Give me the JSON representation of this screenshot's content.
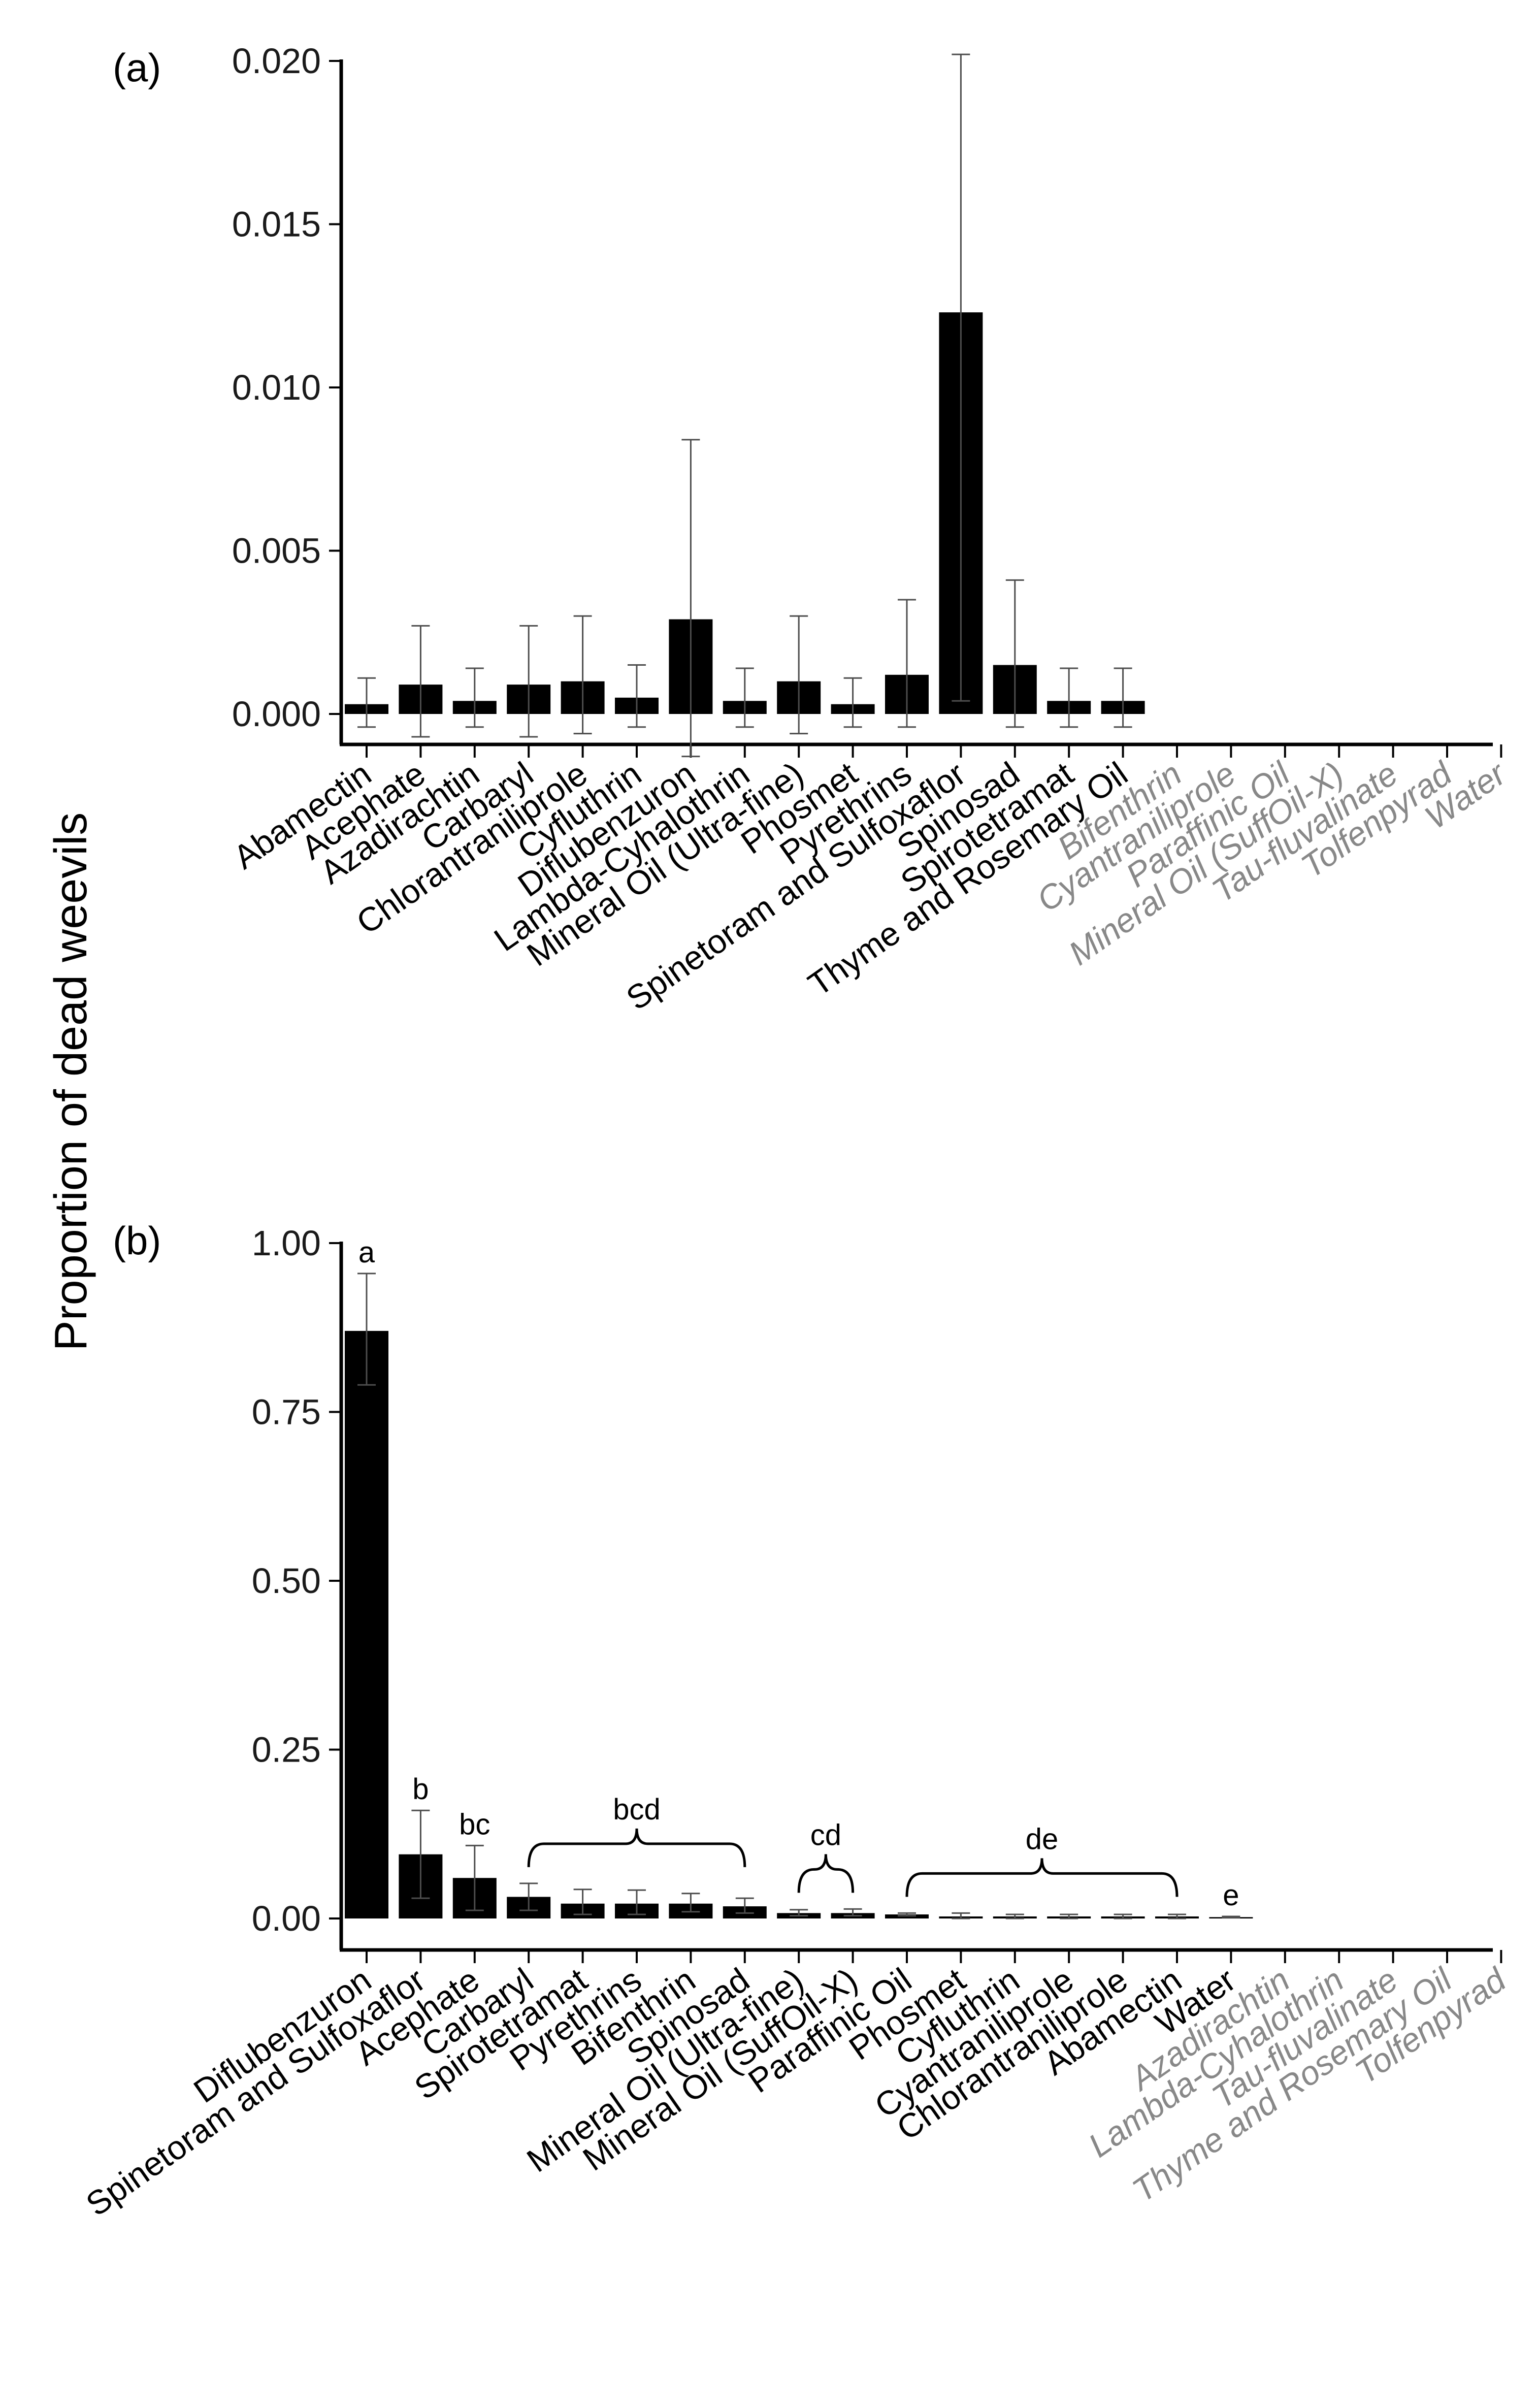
{
  "y_axis_label": "Proportion of dead weevils",
  "chart_data": [
    {
      "panel": "(a)",
      "type": "bar",
      "ylim": [
        0,
        0.02
      ],
      "yticks": [
        "0.000",
        "0.005",
        "0.010",
        "0.015",
        "0.020"
      ],
      "ytick_values": [
        0,
        0.005,
        0.01,
        0.015,
        0.02
      ],
      "categories": [
        "Abamectin",
        "Acephate",
        "Azadirachtin",
        "Carbaryl",
        "Chlorantraniliprole",
        "Cyfluthrin",
        "Diflubenzuron",
        "Lambda-Cyhalothrin",
        "Mineral Oil (Ultra-fine)",
        "Phosmet",
        "Pyrethrins",
        "Spinetoram and Sulfoxaflor",
        "Spinosad",
        "Spirotetramat",
        "Thyme and Rosemary Oil",
        "Bifenthrin",
        "Cyantraniliprole",
        "Paraffinic Oil",
        "Mineral Oil (SuffOil-X)",
        "Tau-fluvalinate",
        "Tolfenpyrad",
        "Water"
      ],
      "values": [
        0.0003,
        0.0009,
        0.0004,
        0.0009,
        0.001,
        0.0005,
        0.0029,
        0.0004,
        0.001,
        0.0003,
        0.0012,
        0.0123,
        0.0015,
        0.0004,
        0.0004,
        null,
        null,
        null,
        null,
        null,
        null,
        null
      ],
      "err_upper": [
        0.0011,
        0.0027,
        0.0014,
        0.0027,
        0.003,
        0.0015,
        0.0084,
        0.0014,
        0.003,
        0.0011,
        0.0035,
        0.0202,
        0.0041,
        0.0014,
        0.0014,
        null,
        null,
        null,
        null,
        null,
        null,
        null
      ],
      "err_lower": [
        -0.0004,
        -0.0007,
        -0.0004,
        -0.0007,
        -0.0006,
        -0.0004,
        -0.0013,
        -0.0004,
        -0.0006,
        -0.0004,
        -0.0004,
        0.0004,
        -0.0004,
        -0.0004,
        -0.0004,
        null,
        null,
        null,
        null,
        null,
        null,
        null
      ],
      "no_data_categories": [
        "Bifenthrin",
        "Cyantraniliprole",
        "Paraffinic Oil",
        "Mineral Oil (SuffOil-X)",
        "Tau-fluvalinate",
        "Tolfenpyrad",
        "Water"
      ]
    },
    {
      "panel": "(b)",
      "type": "bar",
      "ylim": [
        0,
        1.0
      ],
      "yticks": [
        "0.00",
        "0.25",
        "0.50",
        "0.75",
        "1.00"
      ],
      "ytick_values": [
        0,
        0.25,
        0.5,
        0.75,
        1.0
      ],
      "categories": [
        "Diflubenzuron",
        "Spinetoram and Sulfoxaflor",
        "Acephate",
        "Carbaryl",
        "Spirotetramat",
        "Pyrethrins",
        "Bifenthrin",
        "Spinosad",
        "Mineral Oil (Ultra-fine)",
        "Mineral Oil (SuffOil-X)",
        "Paraffinic Oil",
        "Phosmet",
        "Cyfluthrin",
        "Cyantraniliprole",
        "Chlorantraniliprole",
        "Abamectin",
        "Water",
        "Azadirachtin",
        "Lambda-Cyhalothrin",
        "Tau-fluvalinate",
        "Thyme and Rosemary Oil",
        "Tolfenpyrad"
      ],
      "values": [
        0.87,
        0.095,
        0.06,
        0.032,
        0.022,
        0.022,
        0.022,
        0.018,
        0.008,
        0.008,
        0.006,
        0.003,
        0.003,
        0.003,
        0.003,
        0.003,
        0.002,
        null,
        null,
        null,
        null,
        null
      ],
      "err_upper": [
        0.955,
        0.16,
        0.108,
        0.052,
        0.043,
        0.042,
        0.037,
        0.03,
        0.013,
        0.014,
        0.008,
        0.008,
        0.006,
        0.006,
        0.006,
        0.006,
        0.003,
        null,
        null,
        null,
        null,
        null
      ],
      "err_lower": [
        0.79,
        0.03,
        0.012,
        0.012,
        0.006,
        0.006,
        0.01,
        0.008,
        0.004,
        0.004,
        0.004,
        0.0,
        0.0,
        0.0,
        0.0,
        0.0,
        0.001,
        null,
        null,
        null,
        null,
        null
      ],
      "no_data_categories": [
        "Azadirachtin",
        "Lambda-Cyhalothrin",
        "Tau-fluvalinate",
        "Thyme and Rosemary Oil",
        "Tolfenpyrad"
      ],
      "significance_letters": [
        {
          "text": "a",
          "from": 0,
          "to": 0,
          "brace": false
        },
        {
          "text": "b",
          "from": 1,
          "to": 1,
          "brace": false
        },
        {
          "text": "bc",
          "from": 2,
          "to": 2,
          "brace": false
        },
        {
          "text": "bcd",
          "from": 3,
          "to": 7,
          "brace": true
        },
        {
          "text": "cd",
          "from": 8,
          "to": 9,
          "brace": true
        },
        {
          "text": "de",
          "from": 10,
          "to": 15,
          "brace": true
        },
        {
          "text": "e",
          "from": 16,
          "to": 16,
          "brace": false
        }
      ]
    }
  ]
}
